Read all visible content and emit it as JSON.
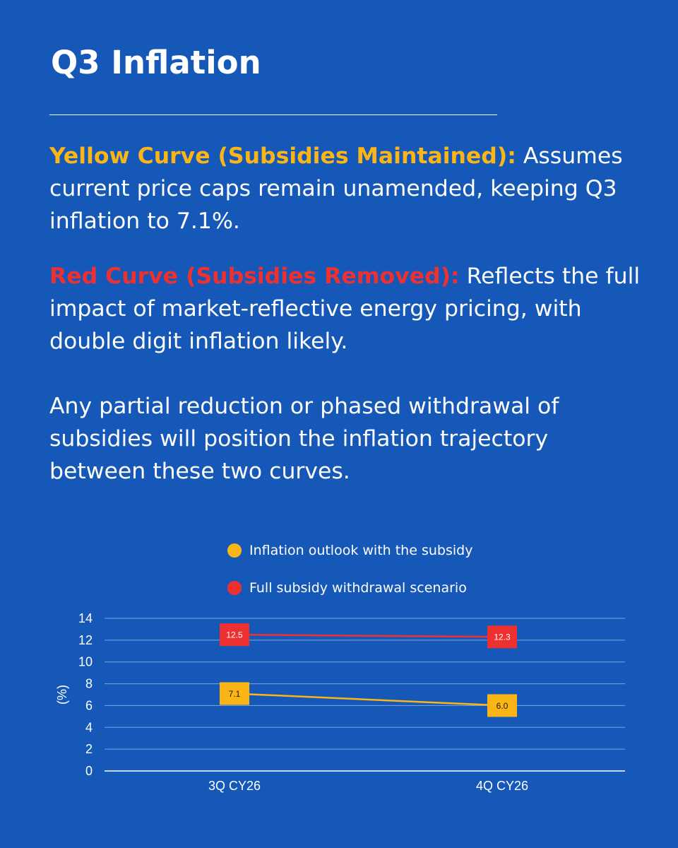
{
  "title": "Q3 Inflation",
  "paragraphs": {
    "p1": {
      "highlight": "Yellow Curve (Subsidies Maintained):",
      "text": " Assumes current price caps remain unamended, keeping Q3 inflation to 7.1%."
    },
    "p2": {
      "highlight": "Red Curve (Subsidies Removed):",
      "text": " Reflects the full impact of market-reflective energy pricing, with double digit inflation likely."
    },
    "p3": {
      "text": "Any partial reduction or phased withdrawal of subsidies will position the inflation trajectory between these two curves."
    }
  },
  "colors": {
    "background": "#1658b8",
    "yellow": "#fbb516",
    "red": "#ee3030"
  },
  "chart_data": {
    "type": "line",
    "categories": [
      "3Q CY26",
      "4Q CY26"
    ],
    "series": [
      {
        "name": "Inflation outlook with the subsidy",
        "values": [
          7.1,
          6.0
        ],
        "labels": [
          "7.1",
          "6.0"
        ],
        "color": "#fbb516"
      },
      {
        "name": "Full subsidy withdrawal scenario",
        "values": [
          12.5,
          12.3
        ],
        "labels": [
          "12.5",
          "12.3"
        ],
        "color": "#ee3030"
      }
    ],
    "ylabel": "(%)",
    "ylim": [
      0,
      14
    ],
    "yticks": [
      0,
      2,
      4,
      6,
      8,
      10,
      12,
      14
    ],
    "grid": true,
    "legend": "top"
  }
}
